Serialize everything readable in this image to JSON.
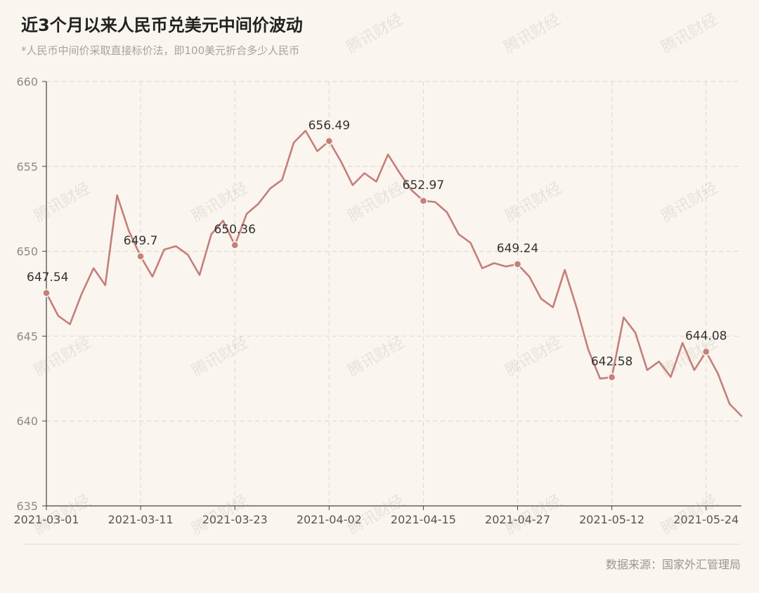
{
  "title": "近3个月以来人民币兑美元中间价波动",
  "subtitle": "*人民币中间价采取直接标价法，即100美元折合多少人民币",
  "source": "数据来源：国家外汇管理局",
  "watermark": "腾讯财经",
  "colors": {
    "line": "#c47f7b",
    "axis": "#444444",
    "grid": "#dcd6ce",
    "label": "#333333",
    "tick": "#555555"
  },
  "chart_data": {
    "type": "line",
    "title": "近3个月以来人民币兑美元中间价波动",
    "xlabel": "",
    "ylabel": "",
    "ylim": [
      635,
      660
    ],
    "yticks": [
      635,
      640,
      645,
      650,
      655,
      660
    ],
    "xtick_labels": [
      "2021-03-01",
      "2021-03-11",
      "2021-03-23",
      "2021-04-02",
      "2021-04-15",
      "2021-04-27",
      "2021-05-12",
      "2021-05-24"
    ],
    "xtick_indices": [
      0,
      8,
      16,
      24,
      32,
      40,
      48,
      56
    ],
    "grid": true,
    "values": [
      647.54,
      646.2,
      645.7,
      647.5,
      649.0,
      648.0,
      653.3,
      651.2,
      649.7,
      648.5,
      650.1,
      650.3,
      649.8,
      648.6,
      651.0,
      651.8,
      650.36,
      652.2,
      652.8,
      653.7,
      654.2,
      656.4,
      657.1,
      655.9,
      656.49,
      655.3,
      653.9,
      654.6,
      654.1,
      655.7,
      654.6,
      653.6,
      652.97,
      652.9,
      652.3,
      651.0,
      650.5,
      649.0,
      649.3,
      649.1,
      649.24,
      648.5,
      647.2,
      646.7,
      648.9,
      646.7,
      644.2,
      642.5,
      642.58,
      646.1,
      645.2,
      643.0,
      643.5,
      642.6,
      644.6,
      643.0,
      644.08,
      642.8,
      641.0,
      640.3
    ],
    "labeled_points": [
      {
        "index": 0,
        "label": "647.54"
      },
      {
        "index": 8,
        "label": "649.7"
      },
      {
        "index": 16,
        "label": "650.36"
      },
      {
        "index": 24,
        "label": "656.49"
      },
      {
        "index": 32,
        "label": "652.97"
      },
      {
        "index": 40,
        "label": "649.24"
      },
      {
        "index": 48,
        "label": "642.58"
      },
      {
        "index": 56,
        "label": "644.08"
      }
    ]
  }
}
